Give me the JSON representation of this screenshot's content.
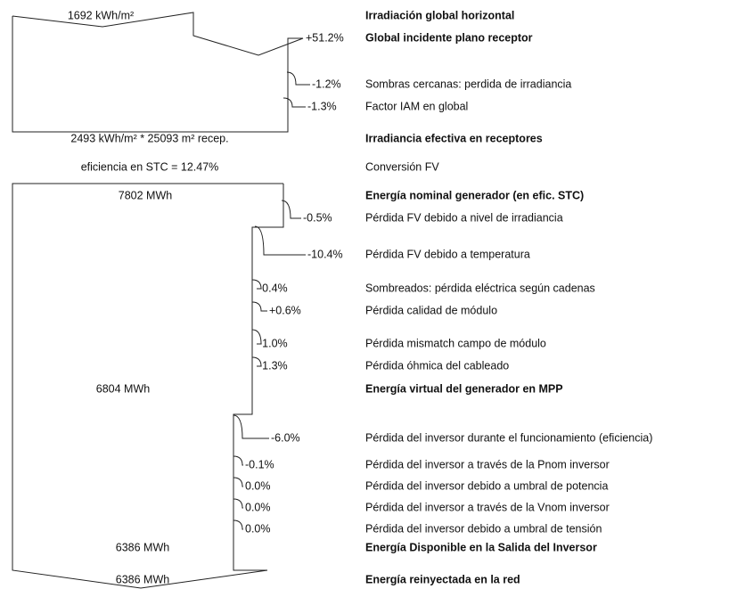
{
  "rows": [
    {
      "amount": "1692 kWh/m²",
      "description": "Irradiación global horizontal",
      "bold": true
    },
    {
      "percent": "+51.2%",
      "description": "Global incidente plano receptor",
      "bold": true
    },
    {
      "percent": "-1.2%",
      "description": "Sombras cercanas: perdida de irradiancia"
    },
    {
      "percent": "-1.3%",
      "description": "Factor IAM en global"
    },
    {
      "amount": "2493 kWh/m² * 25093 m² recep.",
      "description": "Irradiancia efectiva en receptores",
      "bold": true
    },
    {
      "amount": "eficiencia en STC = 12.47%",
      "description": "Conversión FV"
    },
    {
      "amount": "7802 MWh",
      "description": "Energía nominal generador (en efic. STC)",
      "bold": true
    },
    {
      "percent": "-0.5%",
      "description": "Pérdida FV debido a nivel de irradiancia"
    },
    {
      "percent": "-10.4%",
      "description": "Pérdida FV debido a temperatura"
    },
    {
      "percent": "-0.4%",
      "description": "Sombreados: pérdida eléctrica según cadenas"
    },
    {
      "percent": "+0.6%",
      "description": "Pérdida calidad de módulo"
    },
    {
      "percent": "-1.0%",
      "description": "Pérdida mismatch campo de módulo"
    },
    {
      "percent": "-1.3%",
      "description": "Pérdida óhmica del cableado"
    },
    {
      "amount": "6804 MWh",
      "description": "Energía virtual del generador en MPP",
      "bold": true
    },
    {
      "percent": "-6.0%",
      "description": "Pérdida del inversor durante el funcionamiento (eficiencia)"
    },
    {
      "percent": "-0.1%",
      "description": "Pérdida del inversor a través de la Pnom inversor"
    },
    {
      "percent": "0.0%",
      "description": "Pérdida del inversor debido a umbral de potencia"
    },
    {
      "percent": "0.0%",
      "description": "Pérdida del inversor a través de la Vnom inversor"
    },
    {
      "percent": "0.0%",
      "description": "Pérdida del inversor debido a umbral de tensión"
    },
    {
      "amount": "6386 MWh",
      "description": "Energía Disponible en la Salida del Inversor",
      "bold": true
    },
    {
      "amount": "6386 MWh",
      "description": "Energía reinyectada en la red",
      "bold": true
    }
  ]
}
